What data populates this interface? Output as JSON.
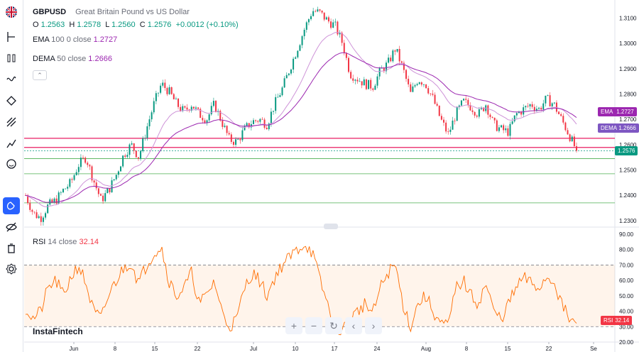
{
  "header": {
    "symbol": "GBPUSD",
    "description": "Great Britain Pound vs US Dollar",
    "ohlc": {
      "o_label": "O",
      "o": "1.2563",
      "h_label": "H",
      "h": "1.2578",
      "l_label": "L",
      "l": "1.2560",
      "c_label": "C",
      "c": "1.2576",
      "change": "+0.0012 (+0.10%)"
    }
  },
  "indicators": {
    "ema": {
      "name": "EMA",
      "params": "100 0 close",
      "value": "1.2727",
      "tag": "EMA",
      "tag_value": "1.2727"
    },
    "dema": {
      "name": "DEMA",
      "params": "50 close",
      "value": "1.2666",
      "tag": "DEMA",
      "tag_value": "1.2666"
    },
    "rsi": {
      "name": "RSI",
      "params": "14 close",
      "value": "32.14",
      "tag": "RSI",
      "tag_value": "32.14"
    }
  },
  "last_price_tag": "1.2576",
  "price_axis_labels": [
    "1.3100",
    "1.3000",
    "1.2900",
    "1.2800",
    "1.2700",
    "1.2600",
    "1.2500",
    "1.2400",
    "1.2300"
  ],
  "rsi_axis_labels": [
    "90.00",
    "80.00",
    "70.00",
    "60.00",
    "50.00",
    "40.00",
    "30.00",
    "20.00"
  ],
  "time_axis_labels": [
    "Jun",
    "8",
    "15",
    "22",
    "Jul",
    "10",
    "17",
    "24",
    "Aug",
    "8",
    "15",
    "22",
    "Se"
  ],
  "brand": "InstaFintech",
  "colors": {
    "up": "#089981",
    "down": "#f23645",
    "ema": "#9c27b0",
    "dema": "#7e57c2",
    "rsi": "#ff6d00",
    "accent": "#2962ff"
  },
  "toolbar_icons": [
    "crosshair-icon",
    "trend-line-icon",
    "pitchfork-icon",
    "fib-icon",
    "brush-icon",
    "text-icon",
    "pattern-icon",
    "emoji-icon",
    "magnet-icon",
    "eye-icon",
    "trash-icon",
    "settings-icon"
  ],
  "nav_icons": [
    "zoom-in-icon",
    "zoom-out-icon",
    "reset-icon",
    "scroll-left-icon",
    "scroll-right-icon"
  ],
  "chart_data": {
    "type": "candlestick",
    "symbol": "GBPUSD",
    "ylim": [
      1.228,
      1.316
    ],
    "x_ticks": [
      "Jun",
      "8",
      "15",
      "22",
      "Jul",
      "10",
      "17",
      "24",
      "Aug",
      "8",
      "15",
      "22",
      "Se"
    ],
    "close_path": [
      1.24,
      1.233,
      1.231,
      1.236,
      1.238,
      1.242,
      1.245,
      1.252,
      1.255,
      1.246,
      1.238,
      1.242,
      1.248,
      1.256,
      1.26,
      1.255,
      1.266,
      1.276,
      1.284,
      1.281,
      1.276,
      1.273,
      1.276,
      1.272,
      1.27,
      1.276,
      1.269,
      1.262,
      1.261,
      1.266,
      1.269,
      1.27,
      1.268,
      1.276,
      1.282,
      1.29,
      1.298,
      1.306,
      1.313,
      1.312,
      1.309,
      1.307,
      1.3,
      1.288,
      1.286,
      1.284,
      1.283,
      1.289,
      1.292,
      1.298,
      1.29,
      1.28,
      1.286,
      1.284,
      1.278,
      1.27,
      1.264,
      1.272,
      1.277,
      1.275,
      1.272,
      1.276,
      1.268,
      1.266,
      1.265,
      1.272,
      1.274,
      1.276,
      1.274,
      1.278,
      1.276,
      1.27,
      1.264,
      1.2576
    ],
    "horizontal_levels": {
      "resistance_red": [
        1.2625,
        1.2589
      ],
      "support_green": [
        1.2545,
        1.2485,
        1.237
      ],
      "last_price": 1.2576
    },
    "series": [
      {
        "name": "EMA",
        "last": 1.2727
      },
      {
        "name": "DEMA",
        "last": 1.2666
      }
    ],
    "rsi": {
      "name": "RSI",
      "ylim": [
        20,
        90
      ],
      "levels": [
        70,
        30
      ],
      "last": 32.14,
      "values": [
        42,
        35,
        40,
        55,
        60,
        50,
        62,
        70,
        58,
        40,
        35,
        50,
        60,
        68,
        72,
        58,
        70,
        78,
        82,
        60,
        50,
        55,
        65,
        45,
        50,
        60,
        40,
        30,
        35,
        55,
        65,
        60,
        50,
        62,
        70,
        75,
        80,
        84,
        78,
        60,
        45,
        30,
        28,
        35,
        40,
        45,
        38,
        55,
        65,
        70,
        45,
        30,
        45,
        50,
        40,
        32,
        30,
        55,
        60,
        50,
        45,
        58,
        40,
        35,
        45,
        55,
        62,
        58,
        55,
        62,
        60,
        45,
        35,
        32
      ]
    }
  }
}
